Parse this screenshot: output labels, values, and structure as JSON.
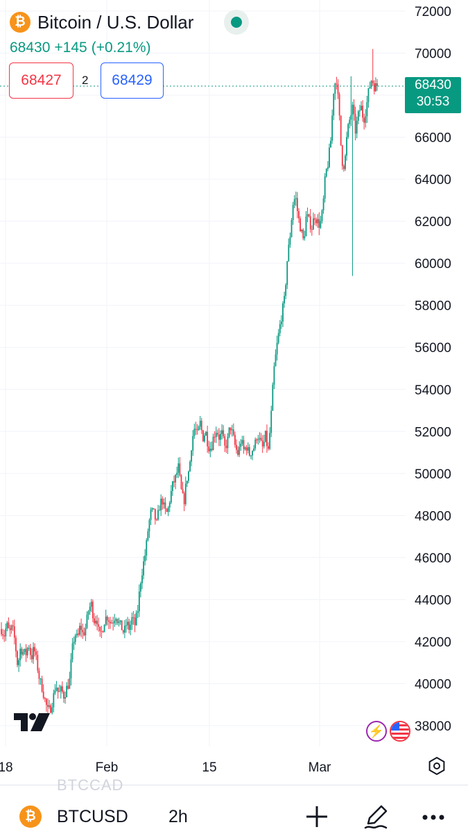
{
  "header": {
    "coin_symbol_glyph": "₿",
    "title": "Bitcoin / U.S. Dollar",
    "last_price": "68430",
    "change_abs": "+145",
    "change_pct": "(+0.21%)",
    "bid": "68427",
    "spread": "2",
    "ask": "68429"
  },
  "price_tag": {
    "price": "68430",
    "countdown": "30:53"
  },
  "chart_data": {
    "type": "candlestick",
    "interval": "2h",
    "ylim": [
      37000,
      72500
    ],
    "y_ticks": [
      72000,
      70000,
      68000,
      66000,
      64000,
      62000,
      60000,
      58000,
      56000,
      54000,
      52000,
      50000,
      48000,
      46000,
      44000,
      42000,
      40000,
      38000
    ],
    "x_ticks": [
      "18",
      "Feb",
      "15",
      "Mar"
    ],
    "last_price_value": 68430,
    "grid": true,
    "colors": {
      "up": "#089981",
      "down": "#f23645"
    },
    "path_points": [
      [
        42600,
        42300,
        42800,
        42400,
        42700,
        42000
      ],
      [
        40800,
        41700,
        41500,
        41400,
        41900,
        41200,
        41700,
        41000,
        40200,
        39800
      ],
      [
        39200,
        38700,
        38800,
        39300,
        40000,
        39500,
        39700,
        39400,
        39800,
        40100
      ],
      [
        41600,
        42400,
        42100,
        42800,
        42300,
        42700,
        43500,
        43800,
        43000,
        43200
      ],
      [
        42200,
        42500,
        43100,
        43200,
        42900,
        43000,
        43300,
        42900,
        42700,
        42400
      ],
      [
        42900,
        42600,
        43100,
        42800,
        43400,
        44800,
        45600,
        46300,
        47500,
        48200
      ],
      [
        48100,
        47600,
        48400,
        48800,
        48200,
        48100,
        48900,
        49500,
        49800,
        50300
      ],
      [
        49200,
        48600,
        49700,
        50200,
        51600,
        52200,
        51800,
        52400,
        51700,
        52000
      ],
      [
        51300,
        51200,
        51800,
        52100,
        51700,
        51900,
        51200,
        51500,
        52300,
        51800
      ],
      [
        51200,
        50900,
        51600,
        51100,
        51300,
        50900,
        51100,
        51300,
        51900,
        51500
      ],
      [
        51200,
        51800,
        51000,
        52600,
        54800,
        55900,
        56800,
        57600,
        58300,
        60200
      ],
      [
        61300,
        62800,
        63200,
        62200,
        61600,
        61000,
        62300,
        62000,
        61700,
        62300
      ],
      [
        62000,
        61800,
        62500,
        64200,
        64800,
        65900,
        68200,
        68900,
        67200,
        64900
      ],
      [
        64600,
        66200,
        66900,
        67400,
        66300,
        67000,
        67500,
        66800,
        67400,
        68300
      ],
      [
        68800,
        68400,
        68430
      ]
    ]
  },
  "watermark": {
    "ghost_symbol": "BTCCAD"
  },
  "bottom_bar": {
    "symbol": "BTCUSD",
    "interval": "2h"
  },
  "icons": {
    "flash": "flash-icon",
    "flag": "us-flag-icon",
    "settings": "settings-icon",
    "add": "plus-icon",
    "draw": "pen-icon",
    "more": "more-icon"
  }
}
